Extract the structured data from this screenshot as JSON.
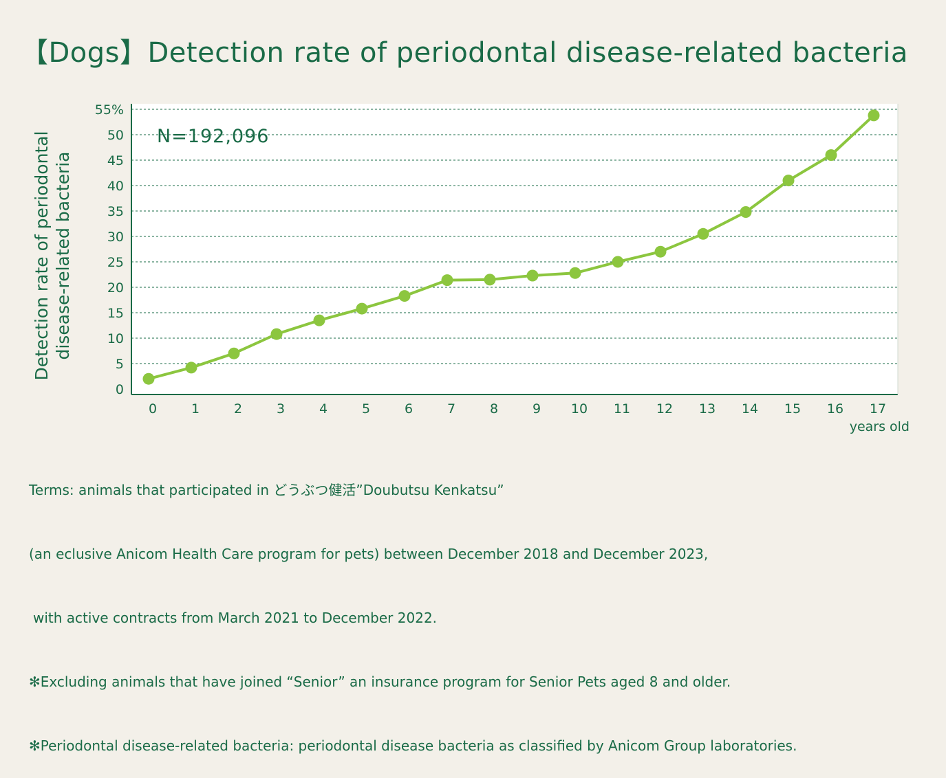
{
  "title": "【Dogs】Detection rate of periodontal disease-related bacteria",
  "colors": {
    "background": "#f3f0e9",
    "text": "#1a6b47",
    "line": "#8cc63f",
    "plot_bg": "#ffffff",
    "grid": "#1a6b47"
  },
  "notes": [
    "Terms: animals that participated in どうぶつ健活”Doubutsu Kenkatsu”",
    "(an eclusive Anicom Health Care program for pets) between December 2018 and December 2023,",
    "with active contracts from March 2021 to December 2022.",
    "✻Excluding animals that have joined “Senior” an insurance program for Senior Pets aged 8 and older.",
    "✻Periodontal disease-related bacteria: periodontal disease bacteria as classified by Anicom Group laboratories."
  ],
  "chart_data": {
    "type": "line",
    "title": "【Dogs】Detection rate of periodontal disease-related bacteria",
    "annotation": "N=192,096",
    "ylabel_lines": [
      "Detection rate of periodontal",
      "disease-related bacteria"
    ],
    "xlabel": "years old",
    "categories": [
      "0",
      "1",
      "2",
      "3",
      "4",
      "5",
      "6",
      "7",
      "8",
      "9",
      "10",
      "11",
      "12",
      "13",
      "14",
      "15",
      "16",
      "17"
    ],
    "values": [
      2.0,
      4.2,
      7.0,
      10.8,
      13.5,
      15.8,
      18.3,
      21.4,
      21.5,
      22.3,
      22.8,
      25.0,
      27.0,
      30.5,
      34.8,
      41.0,
      46.0,
      53.8
    ],
    "ylim": [
      0,
      55
    ],
    "yticks": [
      0,
      5,
      10,
      15,
      20,
      25,
      30,
      35,
      40,
      45,
      50,
      55
    ],
    "ytick_labels": [
      "0",
      "5",
      "10",
      "15",
      "20",
      "25",
      "30",
      "35",
      "40",
      "45",
      "50",
      "55%"
    ],
    "grid": true,
    "grid_style": "dashed"
  }
}
